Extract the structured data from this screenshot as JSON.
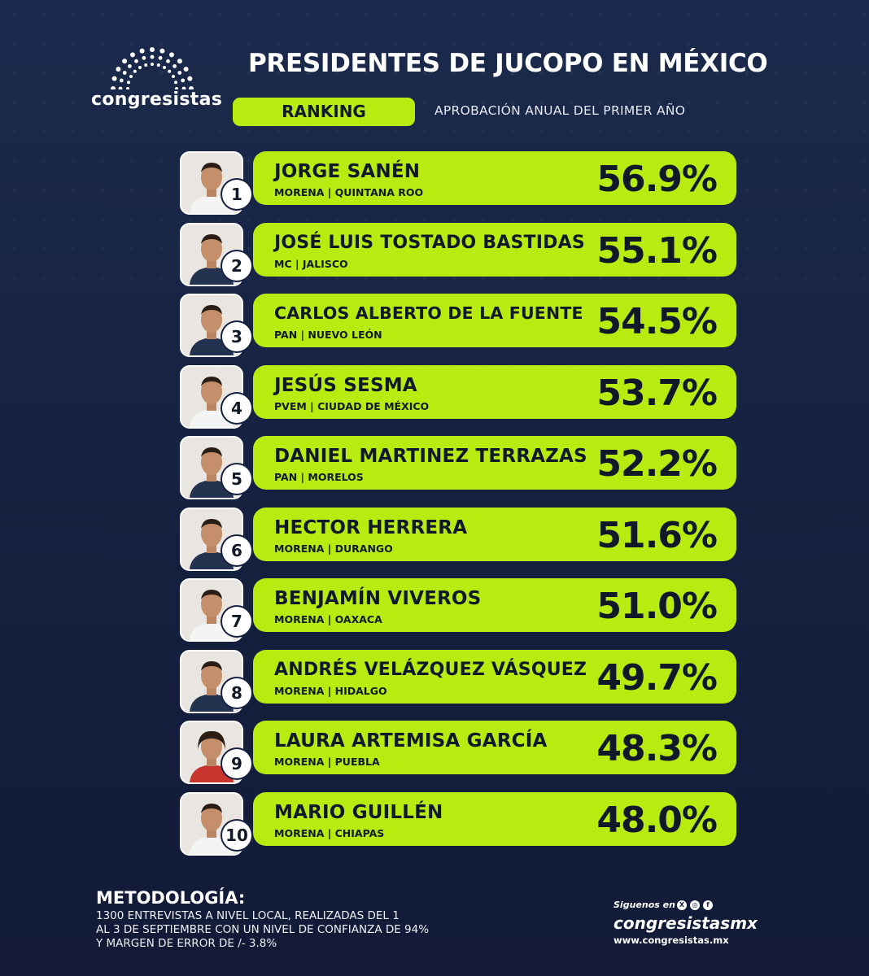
{
  "brand": {
    "logo_text": "congresistas"
  },
  "header": {
    "title": "PRESIDENTES DE JUCOPO EN MÉXICO",
    "ranking_label": "RANKING",
    "subtitle": "APROBACIÓN ANUAL DEL PRIMER AÑO"
  },
  "colors": {
    "background": "#162242",
    "accent": "#b8ec10",
    "text_dark": "#111827"
  },
  "ranking": [
    {
      "rank": "1",
      "name": "JORGE SANÉN",
      "party_state": "MORENA | QUINTANA ROO",
      "approval": "56.9%",
      "photo_icon": "portrait-icon"
    },
    {
      "rank": "2",
      "name": "JOSÉ LUIS TOSTADO BASTIDAS",
      "party_state": "MC | JALISCO",
      "approval": "55.1%",
      "photo_icon": "portrait-icon"
    },
    {
      "rank": "3",
      "name": "CARLOS ALBERTO DE LA FUENTE",
      "party_state": "PAN | NUEVO LEÓN",
      "approval": "54.5%",
      "photo_icon": "portrait-icon"
    },
    {
      "rank": "4",
      "name": "JESÚS SESMA",
      "party_state": "PVEM | CIUDAD DE MÉXICO",
      "approval": "53.7%",
      "photo_icon": "portrait-icon"
    },
    {
      "rank": "5",
      "name": "DANIEL MARTINEZ TERRAZAS",
      "party_state": "PAN | MORELOS",
      "approval": "52.2%",
      "photo_icon": "portrait-icon"
    },
    {
      "rank": "6",
      "name": "HECTOR HERRERA",
      "party_state": "MORENA | DURANGO",
      "approval": "51.6%",
      "photo_icon": "portrait-icon"
    },
    {
      "rank": "7",
      "name": "BENJAMÍN VIVEROS",
      "party_state": "MORENA | OAXACA",
      "approval": "51.0%",
      "photo_icon": "portrait-icon"
    },
    {
      "rank": "8",
      "name": "ANDRÉS VELÁZQUEZ VÁSQUEZ",
      "party_state": "MORENA | HIDALGO",
      "approval": "49.7%",
      "photo_icon": "portrait-icon"
    },
    {
      "rank": "9",
      "name": "LAURA ARTEMISA GARCÍA",
      "party_state": "MORENA | PUEBLA",
      "approval": "48.3%",
      "photo_icon": "portrait-icon"
    },
    {
      "rank": "10",
      "name": "MARIO GUILLÉN",
      "party_state": "MORENA | CHIAPAS",
      "approval": "48.0%",
      "photo_icon": "portrait-icon"
    }
  ],
  "methodology": {
    "title": "METODOLOGÍA:",
    "lines": [
      "1300 ENTREVISTAS A NIVEL LOCAL, REALIZADAS DEL 1",
      "AL 3 DE SEPTIEMBRE CON UN NIVEL DE CONFIANZA DE 94%",
      "Y MARGEN DE ERROR DE /- 3.8%"
    ]
  },
  "footer": {
    "follow_label": "Siguenos en",
    "social_icons": [
      "x-icon",
      "instagram-icon",
      "facebook-icon"
    ],
    "social_glyphs": [
      "X",
      "◎",
      "f"
    ],
    "handle": "congresistasmx",
    "website": "www.congresistas.mx"
  }
}
